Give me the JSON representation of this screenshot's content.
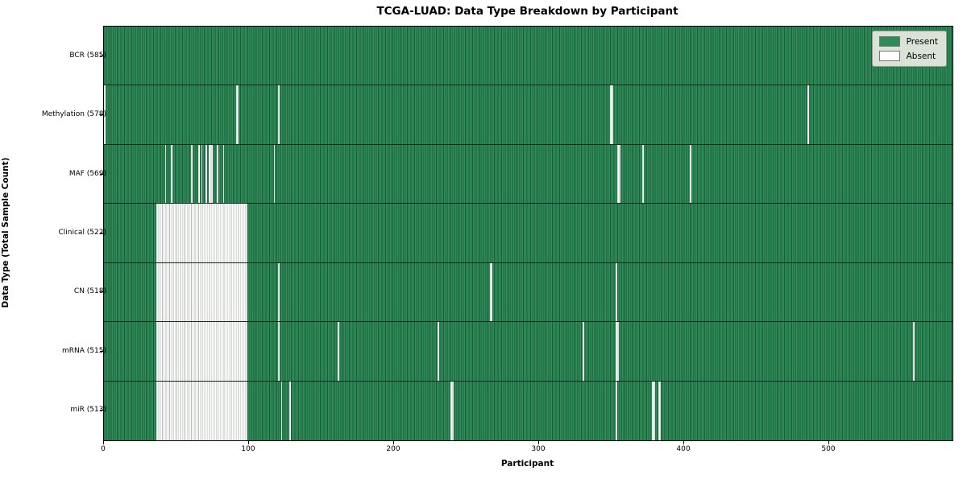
{
  "chart_data": {
    "type": "heatmap",
    "title": "TCGA-LUAD: Data Type Breakdown by Participant",
    "xlabel": "Participant",
    "ylabel": "Data Type (Total Sample Count)",
    "x_ticks": [
      0,
      100,
      200,
      300,
      400,
      500
    ],
    "x_range": [
      0,
      585
    ],
    "n_participants": 585,
    "grid": false,
    "legend_position": "upper right",
    "legend": [
      {
        "label": "Present",
        "color": "#2e8b57"
      },
      {
        "label": "Absent",
        "color": "#ffffff"
      }
    ],
    "colors": {
      "present_fill": "#2f8d5a",
      "present_edge": "#1d5a39",
      "absent_fill": "#ffffff",
      "absent_edge": "#b9bdb9",
      "legend_bg": "#e9ebe3",
      "legend_border": "#999999"
    },
    "rows": [
      {
        "label": "BCR (585)",
        "name": "BCR",
        "present_count": 585,
        "absent_count": 0,
        "absent_ranges": []
      },
      {
        "label": "Methylation (578)",
        "name": "Methylation",
        "present_count": 578,
        "absent_count": 7,
        "absent_ranges": [
          [
            0,
            0
          ],
          [
            91,
            92
          ],
          [
            120,
            120
          ],
          [
            349,
            350
          ],
          [
            485,
            485
          ]
        ]
      },
      {
        "label": "MAF (569)",
        "name": "MAF",
        "present_count": 569,
        "absent_count": 16,
        "absent_ranges": [
          [
            42,
            42
          ],
          [
            46,
            46
          ],
          [
            60,
            60
          ],
          [
            65,
            65
          ],
          [
            67,
            67
          ],
          [
            70,
            70
          ],
          [
            72,
            74
          ],
          [
            78,
            78
          ],
          [
            82,
            82
          ],
          [
            117,
            117
          ],
          [
            354,
            355
          ],
          [
            371,
            371
          ],
          [
            404,
            404
          ]
        ]
      },
      {
        "label": "Clinical (522)",
        "name": "Clinical",
        "present_count": 522,
        "absent_count": 63,
        "absent_ranges": [
          [
            36,
            98
          ]
        ]
      },
      {
        "label": "CN (518)",
        "name": "CN",
        "present_count": 518,
        "absent_count": 67,
        "absent_ranges": [
          [
            36,
            98
          ],
          [
            120,
            120
          ],
          [
            266,
            267
          ],
          [
            353,
            353
          ]
        ]
      },
      {
        "label": "mRNA (515)",
        "name": "mRNA",
        "present_count": 515,
        "absent_count": 70,
        "absent_ranges": [
          [
            36,
            98
          ],
          [
            120,
            120
          ],
          [
            161,
            161
          ],
          [
            230,
            230
          ],
          [
            330,
            330
          ],
          [
            353,
            354
          ],
          [
            558,
            558
          ]
        ]
      },
      {
        "label": "miR (513)",
        "name": "miR",
        "present_count": 513,
        "absent_count": 72,
        "absent_ranges": [
          [
            36,
            98
          ],
          [
            122,
            122
          ],
          [
            128,
            128
          ],
          [
            239,
            240
          ],
          [
            353,
            353
          ],
          [
            378,
            379
          ],
          [
            382,
            383
          ]
        ]
      }
    ]
  }
}
